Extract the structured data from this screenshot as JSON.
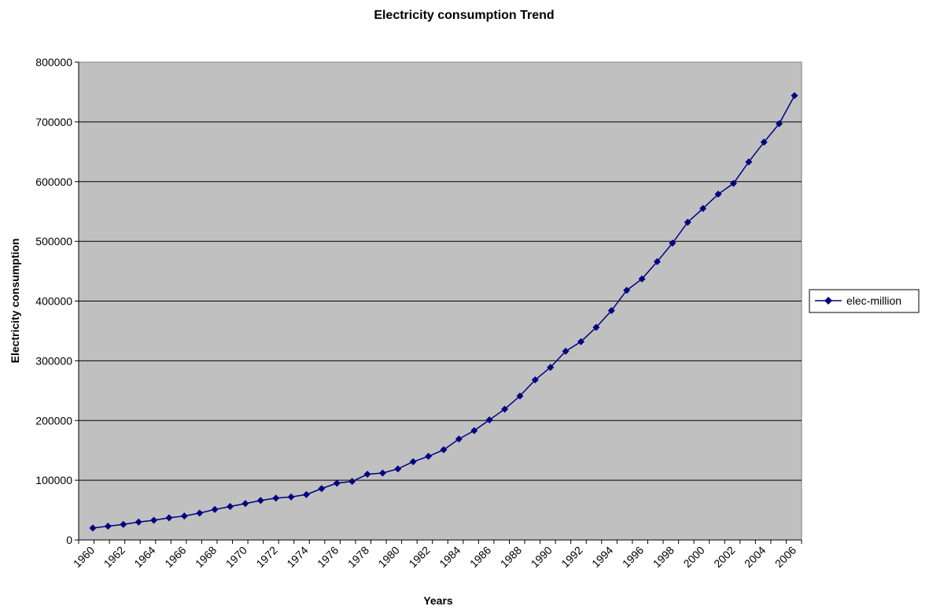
{
  "chart_data": {
    "type": "line",
    "title": "Electricity consumption Trend",
    "xlabel": "Years",
    "ylabel": "Electricity consumption",
    "ylim": [
      0,
      800000
    ],
    "yticks": [
      0,
      100000,
      200000,
      300000,
      400000,
      500000,
      600000,
      700000,
      800000
    ],
    "grid": "horizontal",
    "legend_position": "right",
    "x_tick_labels": [
      "1960",
      "1962",
      "1964",
      "1966",
      "1968",
      "1970",
      "1972",
      "1974",
      "1976",
      "1978",
      "1980",
      "1982",
      "1984",
      "1986",
      "1988",
      "1990",
      "1992",
      "1994",
      "1996",
      "1998",
      "2000",
      "2002",
      "2004",
      "2006"
    ],
    "x": [
      1960,
      1961,
      1962,
      1963,
      1964,
      1965,
      1966,
      1967,
      1968,
      1969,
      1970,
      1971,
      1972,
      1973,
      1974,
      1975,
      1976,
      1977,
      1978,
      1979,
      1980,
      1981,
      1982,
      1983,
      1984,
      1985,
      1986,
      1987,
      1988,
      1989,
      1990,
      1991,
      1992,
      1993,
      1994,
      1995,
      1996,
      1997,
      1998,
      1999,
      2000,
      2001,
      2002,
      2003,
      2004,
      2005,
      2006
    ],
    "series": [
      {
        "name": "elec-million",
        "color": "#000080",
        "values": [
          20000,
          23000,
          26000,
          30000,
          33000,
          37000,
          40000,
          45000,
          51000,
          56000,
          61000,
          66000,
          70000,
          72000,
          76000,
          86000,
          95000,
          98000,
          110000,
          112000,
          119000,
          131000,
          140000,
          151000,
          169000,
          183000,
          201000,
          219000,
          241000,
          268000,
          289000,
          316000,
          332000,
          356000,
          384000,
          418000,
          437000,
          466000,
          497000,
          532000,
          555000,
          579000,
          597000,
          633000,
          666000,
          697000,
          744000
        ]
      }
    ],
    "background_color": "#c0c0c0"
  }
}
